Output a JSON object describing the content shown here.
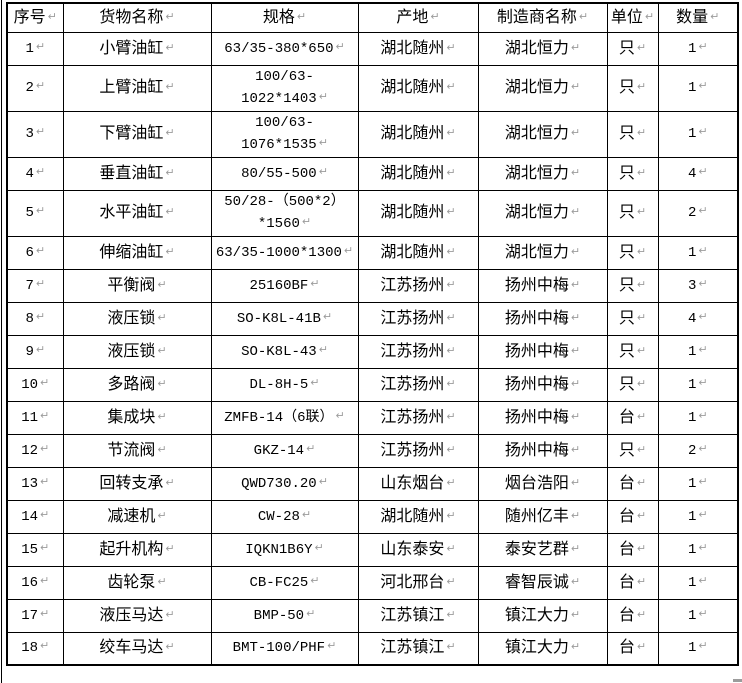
{
  "page": {
    "background": "#ffffff",
    "border_color": "#000000",
    "mark_color": "#9c9c9c"
  },
  "table": {
    "return_mark": "↵",
    "columns": [
      {
        "key": "index",
        "label": "序号"
      },
      {
        "key": "name",
        "label": "货物名称"
      },
      {
        "key": "spec",
        "label": "规格"
      },
      {
        "key": "origin",
        "label": "产地"
      },
      {
        "key": "manufacturer",
        "label": "制造商名称"
      },
      {
        "key": "unit",
        "label": "单位"
      },
      {
        "key": "qty",
        "label": "数量"
      }
    ],
    "rows": [
      {
        "index": "1",
        "name": "小臂油缸",
        "spec": "63/35-380*650",
        "origin": "湖北随州",
        "manufacturer": "湖北恒力",
        "unit": "只",
        "qty": "1"
      },
      {
        "index": "2",
        "name": "上臂油缸",
        "spec": "100/63-1022*1403",
        "origin": "湖北随州",
        "manufacturer": "湖北恒力",
        "unit": "只",
        "qty": "1"
      },
      {
        "index": "3",
        "name": "下臂油缸",
        "spec": "100/63-1076*1535",
        "origin": "湖北随州",
        "manufacturer": "湖北恒力",
        "unit": "只",
        "qty": "1"
      },
      {
        "index": "4",
        "name": "垂直油缸",
        "spec": "80/55-500",
        "origin": "湖北随州",
        "manufacturer": "湖北恒力",
        "unit": "只",
        "qty": "4"
      },
      {
        "index": "5",
        "name": "水平油缸",
        "spec": "50/28-（500*2）\n*1560",
        "origin": "湖北随州",
        "manufacturer": "湖北恒力",
        "unit": "只",
        "qty": "2"
      },
      {
        "index": "6",
        "name": "伸缩油缸",
        "spec": "63/35-1000*1300",
        "origin": "湖北随州",
        "manufacturer": "湖北恒力",
        "unit": "只",
        "qty": "1"
      },
      {
        "index": "7",
        "name": "平衡阀",
        "spec": "25160BF",
        "origin": "江苏扬州",
        "manufacturer": "扬州中梅",
        "unit": "只",
        "qty": "3"
      },
      {
        "index": "8",
        "name": "液压锁",
        "spec": "SO-K8L-41B",
        "origin": "江苏扬州",
        "manufacturer": "扬州中梅",
        "unit": "只",
        "qty": "4"
      },
      {
        "index": "9",
        "name": "液压锁",
        "spec": "SO-K8L-43",
        "origin": "江苏扬州",
        "manufacturer": "扬州中梅",
        "unit": "只",
        "qty": "1"
      },
      {
        "index": "10",
        "name": "多路阀",
        "spec": "DL-8H-5",
        "origin": "江苏扬州",
        "manufacturer": "扬州中梅",
        "unit": "只",
        "qty": "1"
      },
      {
        "index": "11",
        "name": "集成块",
        "spec": "ZMFB-14（6联）",
        "origin": "江苏扬州",
        "manufacturer": "扬州中梅",
        "unit": "台",
        "qty": "1"
      },
      {
        "index": "12",
        "name": "节流阀",
        "spec": "GKZ-14",
        "origin": "江苏扬州",
        "manufacturer": "扬州中梅",
        "unit": "只",
        "qty": "2"
      },
      {
        "index": "13",
        "name": "回转支承",
        "spec": "QWD730.20",
        "origin": "山东烟台",
        "manufacturer": "烟台浩阳",
        "unit": "台",
        "qty": "1"
      },
      {
        "index": "14",
        "name": "减速机",
        "spec": "CW-28",
        "origin": "湖北随州",
        "manufacturer": "随州亿丰",
        "unit": "台",
        "qty": "1"
      },
      {
        "index": "15",
        "name": "起升机构",
        "spec": "IQKN1B6Y",
        "origin": "山东泰安",
        "manufacturer": "泰安艺群",
        "unit": "台",
        "qty": "1"
      },
      {
        "index": "16",
        "name": "齿轮泵",
        "spec": "CB-FC25",
        "origin": "河北邢台",
        "manufacturer": "睿智辰诚",
        "unit": "台",
        "qty": "1"
      },
      {
        "index": "17",
        "name": "液压马达",
        "spec": "BMP-50",
        "origin": "江苏镇江",
        "manufacturer": "镇江大力",
        "unit": "台",
        "qty": "1"
      },
      {
        "index": "18",
        "name": "绞车马达",
        "spec": "BMT-100/PHF",
        "origin": "江苏镇江",
        "manufacturer": "镇江大力",
        "unit": "台",
        "qty": "1"
      }
    ]
  }
}
